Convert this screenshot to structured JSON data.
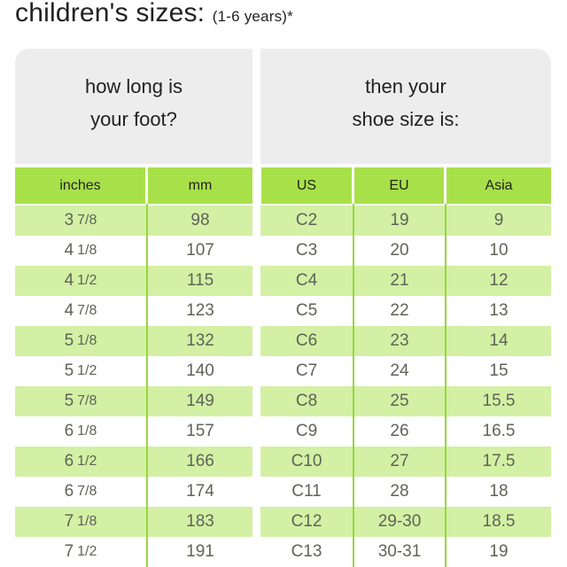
{
  "title": {
    "main": "children's sizes:",
    "sub": "(1-6 years)*"
  },
  "headers": {
    "left": [
      "how long is",
      "your foot?"
    ],
    "right": [
      "then your",
      "shoe size is:"
    ]
  },
  "columns": [
    "inches",
    "mm",
    "US",
    "EU",
    "Asia"
  ],
  "colors": {
    "header_bg": "#ededee",
    "column_header_bg": "#a8e04a",
    "shaded_row_bg": "#d3f0a4",
    "divider": "#98d63c",
    "text": "#5f6359"
  },
  "rows": [
    {
      "in_whole": "3",
      "in_frac": "7/8",
      "mm": "98",
      "us": "C2",
      "eu": "19",
      "asia": "9"
    },
    {
      "in_whole": "4",
      "in_frac": "1/8",
      "mm": "107",
      "us": "C3",
      "eu": "20",
      "asia": "10"
    },
    {
      "in_whole": "4",
      "in_frac": "1/2",
      "mm": "115",
      "us": "C4",
      "eu": "21",
      "asia": "12"
    },
    {
      "in_whole": "4",
      "in_frac": "7/8",
      "mm": "123",
      "us": "C5",
      "eu": "22",
      "asia": "13"
    },
    {
      "in_whole": "5",
      "in_frac": "1/8",
      "mm": "132",
      "us": "C6",
      "eu": "23",
      "asia": "14"
    },
    {
      "in_whole": "5",
      "in_frac": "1/2",
      "mm": "140",
      "us": "C7",
      "eu": "24",
      "asia": "15"
    },
    {
      "in_whole": "5",
      "in_frac": "7/8",
      "mm": "149",
      "us": "C8",
      "eu": "25",
      "asia": "15.5"
    },
    {
      "in_whole": "6",
      "in_frac": "1/8",
      "mm": "157",
      "us": "C9",
      "eu": "26",
      "asia": "16.5"
    },
    {
      "in_whole": "6",
      "in_frac": "1/2",
      "mm": "166",
      "us": "C10",
      "eu": "27",
      "asia": "17.5"
    },
    {
      "in_whole": "6",
      "in_frac": "7/8",
      "mm": "174",
      "us": "C11",
      "eu": "28",
      "asia": "18"
    },
    {
      "in_whole": "7",
      "in_frac": "1/8",
      "mm": "183",
      "us": "C12",
      "eu": "29-30",
      "asia": "18.5"
    },
    {
      "in_whole": "7",
      "in_frac": "1/2",
      "mm": "191",
      "us": "C13",
      "eu": "30-31",
      "asia": "19"
    }
  ]
}
